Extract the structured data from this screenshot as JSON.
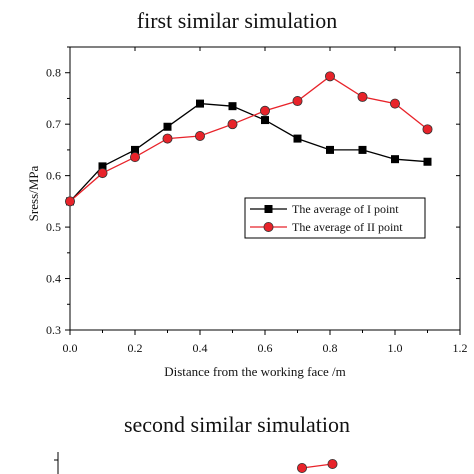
{
  "chart_data": [
    {
      "type": "line",
      "title": "first similar simulation",
      "xlabel": "Distance from the working face /m",
      "ylabel": "Sress/MPa",
      "xlim": [
        0.0,
        1.2
      ],
      "ylim": [
        0.3,
        0.85
      ],
      "xticks": [
        "0.0",
        "0.2",
        "0.4",
        "0.6",
        "0.8",
        "1.0",
        "1.2"
      ],
      "yticks": [
        "0.3",
        "0.4",
        "0.5",
        "0.6",
        "0.7",
        "0.8"
      ],
      "legend_position": "center-right",
      "grid": false,
      "series": [
        {
          "name": "The average of I point",
          "marker": "square",
          "color": "#000000",
          "x": [
            0.0,
            0.1,
            0.2,
            0.3,
            0.4,
            0.5,
            0.6,
            0.7,
            0.8,
            0.9,
            1.0,
            1.1
          ],
          "y": [
            0.55,
            0.618,
            0.65,
            0.695,
            0.74,
            0.735,
            0.708,
            0.672,
            0.65,
            0.65,
            0.632,
            0.627
          ]
        },
        {
          "name": "The average of II point",
          "marker": "circle",
          "color": "#e8232a",
          "x": [
            0.0,
            0.1,
            0.2,
            0.3,
            0.4,
            0.5,
            0.6,
            0.7,
            0.8,
            0.9,
            1.0,
            1.1
          ],
          "y": [
            0.55,
            0.605,
            0.636,
            0.672,
            0.677,
            0.7,
            0.726,
            0.745,
            0.793,
            0.753,
            0.74,
            0.69
          ]
        }
      ]
    },
    {
      "type": "line",
      "title": "second similar simulation",
      "partially_visible": true,
      "series": [
        {
          "name": "",
          "marker": "circle",
          "color": "#e8232a",
          "x": [
            0.8,
            0.9
          ],
          "y": [
            0.78,
            0.8
          ]
        }
      ]
    }
  ]
}
